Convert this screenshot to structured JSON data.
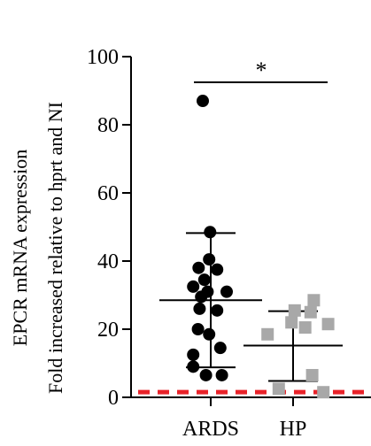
{
  "chart_data": {
    "type": "scatter",
    "ylabel_line1": "EPCR mRNA expression",
    "ylabel_line2": "Fold increased relative to hprt and NI",
    "ylim": [
      0,
      100
    ],
    "yticks": [
      "0",
      "20",
      "40",
      "60",
      "80",
      "100"
    ],
    "categories": [
      "ARDS",
      "HP"
    ],
    "series": [
      {
        "category": "ARDS",
        "marker": "circle",
        "color": "#000000",
        "mean": 28.5,
        "sd_low": 8.8,
        "sd_high": 48.2,
        "points": [
          {
            "x": -0.25,
            "y": 87
          },
          {
            "x": -0.02,
            "y": 48.5
          },
          {
            "x": -0.05,
            "y": 40.5
          },
          {
            "x": -0.38,
            "y": 38
          },
          {
            "x": 0.2,
            "y": 37.5
          },
          {
            "x": -0.2,
            "y": 34.5
          },
          {
            "x": -0.55,
            "y": 32.5
          },
          {
            "x": 0.5,
            "y": 31
          },
          {
            "x": -0.1,
            "y": 31
          },
          {
            "x": -0.3,
            "y": 29.5
          },
          {
            "x": -0.35,
            "y": 26
          },
          {
            "x": 0.2,
            "y": 25.5
          },
          {
            "x": -0.4,
            "y": 20
          },
          {
            "x": -0.05,
            "y": 18.5
          },
          {
            "x": -0.55,
            "y": 12.5
          },
          {
            "x": 0.3,
            "y": 14.5
          },
          {
            "x": -0.55,
            "y": 9
          },
          {
            "x": -0.15,
            "y": 6.5
          },
          {
            "x": 0.35,
            "y": 6.5
          }
        ]
      },
      {
        "category": "HP",
        "marker": "square",
        "color": "#a8a8a8",
        "mean": 15.2,
        "sd_low": 4.8,
        "sd_high": 25.3,
        "points": [
          {
            "x": 0.65,
            "y": 28.5
          },
          {
            "x": 0.05,
            "y": 25.5
          },
          {
            "x": 0.55,
            "y": 25
          },
          {
            "x": -0.05,
            "y": 22
          },
          {
            "x": 1.1,
            "y": 21.5
          },
          {
            "x": 0.38,
            "y": 20.5
          },
          {
            "x": -0.8,
            "y": 18.5
          },
          {
            "x": 0.6,
            "y": 6.5
          },
          {
            "x": -0.45,
            "y": 2.5
          },
          {
            "x": 0.95,
            "y": 1.5
          }
        ]
      }
    ],
    "significance": "*",
    "reference_line": {
      "y": 1,
      "color": "#e8232a",
      "style": "dashed"
    }
  }
}
